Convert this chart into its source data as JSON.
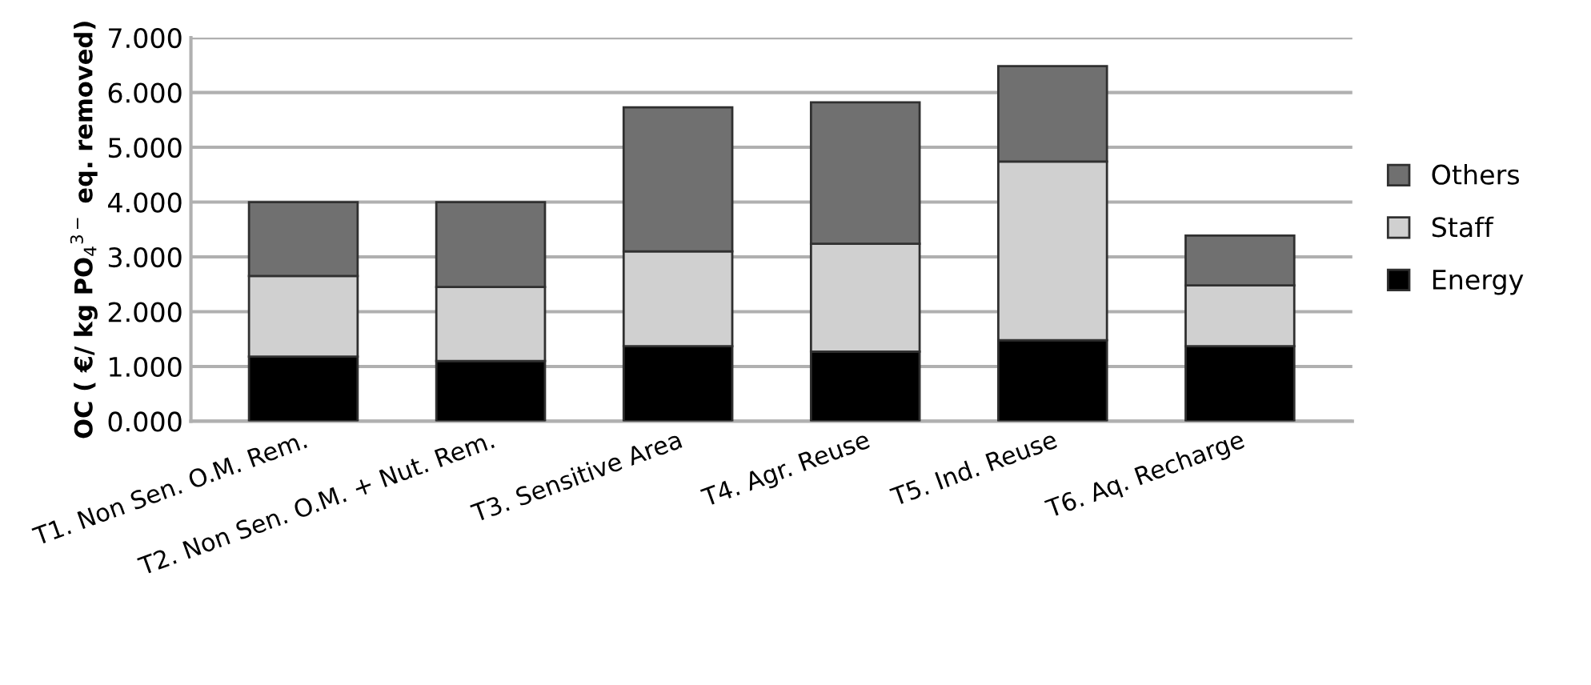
{
  "chart_data": {
    "type": "bar",
    "stacked": true,
    "ylabel": "OC ( €/ kg PO$_{4}$$^{3−}$ eq. removed)",
    "categories": [
      "T1. Non Sen. O.M. Rem.",
      "T2. Non Sen. O.M. + Nut. Rem.",
      "T3. Sensitive Area",
      "T4. Agr. Reuse",
      "T5. Ind. Reuse",
      "T6. Aq. Recharge"
    ],
    "series": [
      {
        "name": "Energy",
        "color": "#000000",
        "values": [
          1.18,
          1.1,
          1.37,
          1.27,
          1.48,
          1.37
        ]
      },
      {
        "name": "Staff",
        "color": "#d0d0d0",
        "values": [
          1.47,
          1.35,
          1.73,
          1.97,
          3.26,
          1.11
        ]
      },
      {
        "name": "Others",
        "color": "#707070",
        "values": [
          1.35,
          1.55,
          2.63,
          2.58,
          1.74,
          0.91
        ]
      }
    ],
    "ylim": [
      0,
      7
    ],
    "yticks": [
      {
        "value": 0,
        "label": "0.000"
      },
      {
        "value": 1,
        "label": "1.000"
      },
      {
        "value": 2,
        "label": "2.000"
      },
      {
        "value": 3,
        "label": "3.000"
      },
      {
        "value": 4,
        "label": "4.000"
      },
      {
        "value": 5,
        "label": "5.000"
      },
      {
        "value": 6,
        "label": "6.000"
      },
      {
        "value": 7,
        "label": "7.000"
      }
    ],
    "grid": "y",
    "legend": "right"
  }
}
